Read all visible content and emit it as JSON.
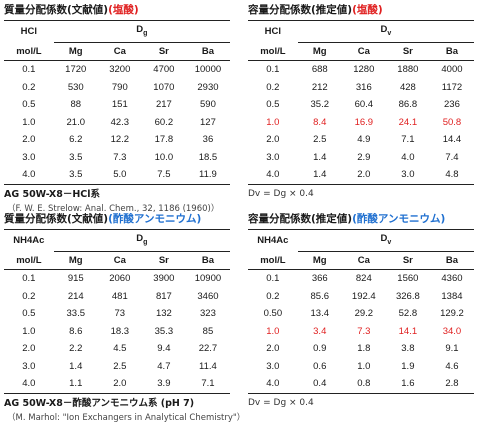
{
  "panels": {
    "tl": {
      "title": "質量分配係数(文献値)",
      "accent": "(塩酸)",
      "acid_label": "HCl",
      "unit_label": "mol/L",
      "symbol": "Dg",
      "columns": [
        "Mg",
        "Ca",
        "Sr",
        "Ba"
      ],
      "rows": [
        [
          "0.1",
          "1720",
          "3200",
          "4700",
          "10000"
        ],
        [
          "0.2",
          "530",
          "790",
          "1070",
          "2930"
        ],
        [
          "0.5",
          "88",
          "151",
          "217",
          "590"
        ],
        [
          "1.0",
          "21.0",
          "42.3",
          "60.2",
          "127"
        ],
        [
          "2.0",
          "6.2",
          "12.2",
          "17.8",
          "36"
        ],
        [
          "3.0",
          "3.5",
          "7.3",
          "10.0",
          "18.5"
        ],
        [
          "4.0",
          "3.5",
          "5.0",
          "7.5",
          "11.9"
        ]
      ],
      "footer_main": "AG 50W-X8－HCl系",
      "footer_sub": "（F. W. E. Strelow: Anal. Chem., 32, 1186 (1960)）"
    },
    "tr": {
      "title": "容量分配係数(推定値)",
      "accent": "(塩酸)",
      "acid_label": "HCl",
      "unit_label": "mol/L",
      "symbol": "Dv",
      "columns": [
        "Mg",
        "Ca",
        "Sr",
        "Ba"
      ],
      "rows": [
        [
          "0.1",
          "688",
          "1280",
          "1880",
          "4000"
        ],
        [
          "0.2",
          "212",
          "316",
          "428",
          "1172"
        ],
        [
          "0.5",
          "35.2",
          "60.4",
          "86.8",
          "236"
        ],
        [
          "1.0",
          "8.4",
          "16.9",
          "24.1",
          "50.8"
        ],
        [
          "2.0",
          "2.5",
          "4.9",
          "7.1",
          "14.4"
        ],
        [
          "3.0",
          "1.4",
          "2.9",
          "4.0",
          "7.4"
        ],
        [
          "4.0",
          "1.4",
          "2.0",
          "3.0",
          "4.8"
        ]
      ],
      "highlight_row": 3,
      "note": "Dv = Dg × 0.4"
    },
    "bl": {
      "title": "質量分配係数(文献値)",
      "accent": "(酢酸アンモニウム)",
      "acid_label": "NH4Ac",
      "unit_label": "mol/L",
      "symbol": "Dg",
      "columns": [
        "Mg",
        "Ca",
        "Sr",
        "Ba"
      ],
      "rows": [
        [
          "0.1",
          "915",
          "2060",
          "3900",
          "10900"
        ],
        [
          "0.2",
          "214",
          "481",
          "817",
          "3460"
        ],
        [
          "0.5",
          "33.5",
          "73",
          "132",
          "323"
        ],
        [
          "1.0",
          "8.6",
          "18.3",
          "35.3",
          "85"
        ],
        [
          "2.0",
          "2.2",
          "4.5",
          "9.4",
          "22.7"
        ],
        [
          "3.0",
          "1.4",
          "2.5",
          "4.7",
          "11.4"
        ],
        [
          "4.0",
          "1.1",
          "2.0",
          "3.9",
          "7.1"
        ]
      ],
      "footer_main": "AG 50W-X8－酢酸アンモニウム系 (pH 7)",
      "footer_sub": "（M. Marhol: \"Ion Exchangers in Analytical Chemistry\"）"
    },
    "br": {
      "title": "容量分配係数(推定値)",
      "accent": "(酢酸アンモニウム)",
      "acid_label": "NH4Ac",
      "unit_label": "mol/L",
      "symbol": "Dv",
      "columns": [
        "Mg",
        "Ca",
        "Sr",
        "Ba"
      ],
      "rows": [
        [
          "0.1",
          "366",
          "824",
          "1560",
          "4360"
        ],
        [
          "0.2",
          "85.6",
          "192.4",
          "326.8",
          "1384"
        ],
        [
          "0.50",
          "13.4",
          "29.2",
          "52.8",
          "129.2"
        ],
        [
          "1.0",
          "3.4",
          "7.3",
          "14.1",
          "34.0"
        ],
        [
          "2.0",
          "0.9",
          "1.8",
          "3.8",
          "9.1"
        ],
        [
          "3.0",
          "0.6",
          "1.0",
          "1.9",
          "4.6"
        ],
        [
          "4.0",
          "0.4",
          "0.8",
          "1.6",
          "2.8"
        ]
      ],
      "highlight_row": 3,
      "note": "Dv = Dg × 0.4"
    }
  },
  "colors": {
    "accent_red": "#e02020",
    "accent_blue": "#2070d0",
    "rule": "#222222"
  }
}
